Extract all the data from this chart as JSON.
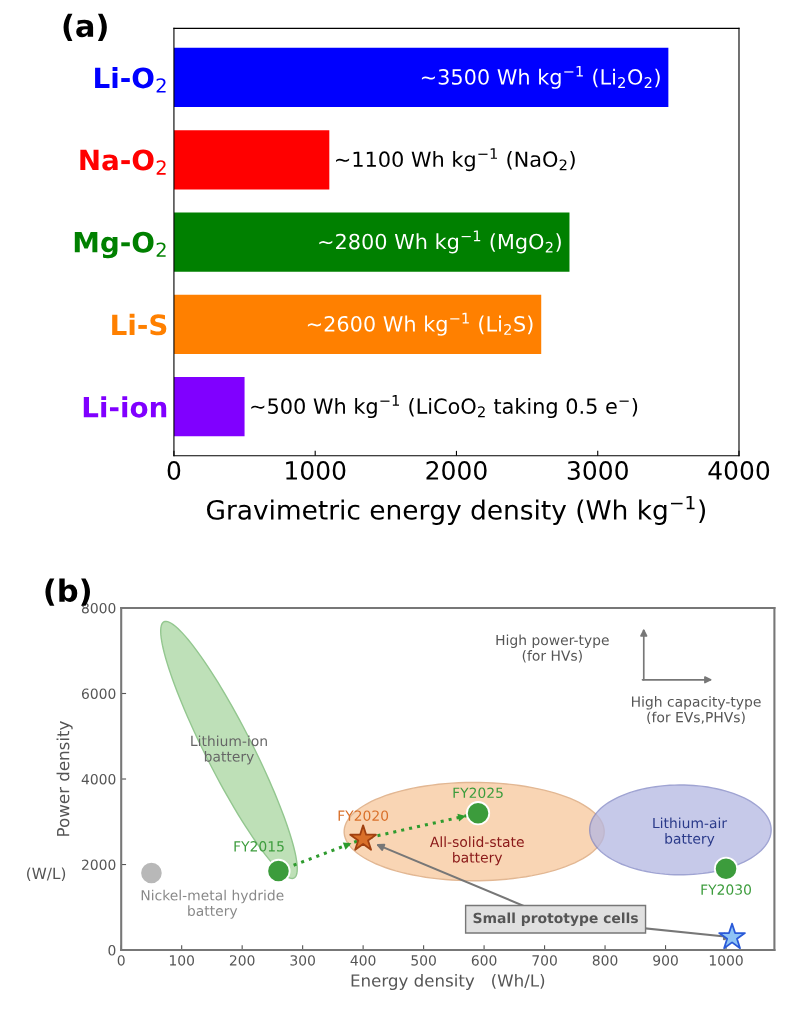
{
  "chart_data": [
    {
      "type": "bar",
      "orientation": "horizontal",
      "title": "(a)",
      "categories": [
        "Li-O$_{2}$",
        "Na-O$_{2}$",
        "Mg-O$_{2}$",
        "Li-S",
        "Li-ion"
      ],
      "values": [
        3500,
        1100,
        2800,
        2600,
        500
      ],
      "colors": [
        "#0000ff",
        "#ff0000",
        "#008000",
        "#ff8000",
        "#8000ff"
      ],
      "value_labels": [
        "~3500 Wh kg$^{−1}$ (Li$_{2}$O$_{2}$)",
        "~1100 Wh kg$^{−1}$ (NaO$_{2}$)",
        "~2800 Wh kg$^{−1}$ (MgO$_{2}$)",
        "~2600 Wh kg$^{−1}$ (Li$_{2}$S)",
        "~500 Wh kg$^{−1}$ (LiCoO$_{2}$ taking 0.5 e$^{−}$)"
      ],
      "xlim": [
        0,
        4000
      ],
      "xticks": [
        0,
        1000,
        2000,
        3000,
        4000
      ],
      "xlabel": "Gravimetric energy density (Wh kg$^{−1}$)",
      "grid": false,
      "legend": false
    },
    {
      "type": "scatter",
      "title": "(b)",
      "xlabel": "Energy density   (Wh/L)",
      "ylabel": "Power density",
      "xlim": [
        0,
        1080
      ],
      "xticks": [
        0,
        100,
        200,
        300,
        400,
        500,
        600,
        700,
        800,
        900,
        1000
      ],
      "ylim": [
        0,
        8000
      ],
      "yticks": [
        0,
        2000,
        4000,
        6000,
        8000
      ],
      "grid": false,
      "legend": false,
      "series": [
        {
          "name": "Nickel-metal hydride battery",
          "x": [
            50
          ],
          "values": [
            1800
          ],
          "color": "#b8b8b8",
          "marker": "circle"
        },
        {
          "name": "FY2015",
          "x": [
            260
          ],
          "values": [
            1850
          ],
          "color": "#3c9c3c",
          "marker": "circle"
        },
        {
          "name": "FY2020",
          "x": [
            400
          ],
          "values": [
            2600
          ],
          "color": "#d9702a",
          "marker": "star"
        },
        {
          "name": "FY2025",
          "x": [
            590
          ],
          "values": [
            3200
          ],
          "color": "#3c9c3c",
          "marker": "circle"
        },
        {
          "name": "FY2030",
          "x": [
            1000
          ],
          "values": [
            1900
          ],
          "color": "#3c9c3c",
          "marker": "circle"
        },
        {
          "x": [
            1010
          ],
          "values": [
            300
          ],
          "color": "#8fc4f5",
          "marker": "star"
        },
        {
          "type": "line",
          "x": [
            260,
            400,
            590
          ],
          "values": [
            1850,
            2600,
            3200
          ],
          "color": "#2e9b2e",
          "line_style": "dotted",
          "marker": "none"
        }
      ],
      "annotations": [
        "Lithium-ion\nbattery",
        "All-solid-state\nbattery",
        "Lithium-air\nbattery",
        {
          "text": "Small prototype cells",
          "x": 1010,
          "y": 300
        },
        "(W/L)",
        "High power-type\n(for HVs)",
        "High capacity-type\n(for EVs,PHVs)"
      ]
    }
  ]
}
